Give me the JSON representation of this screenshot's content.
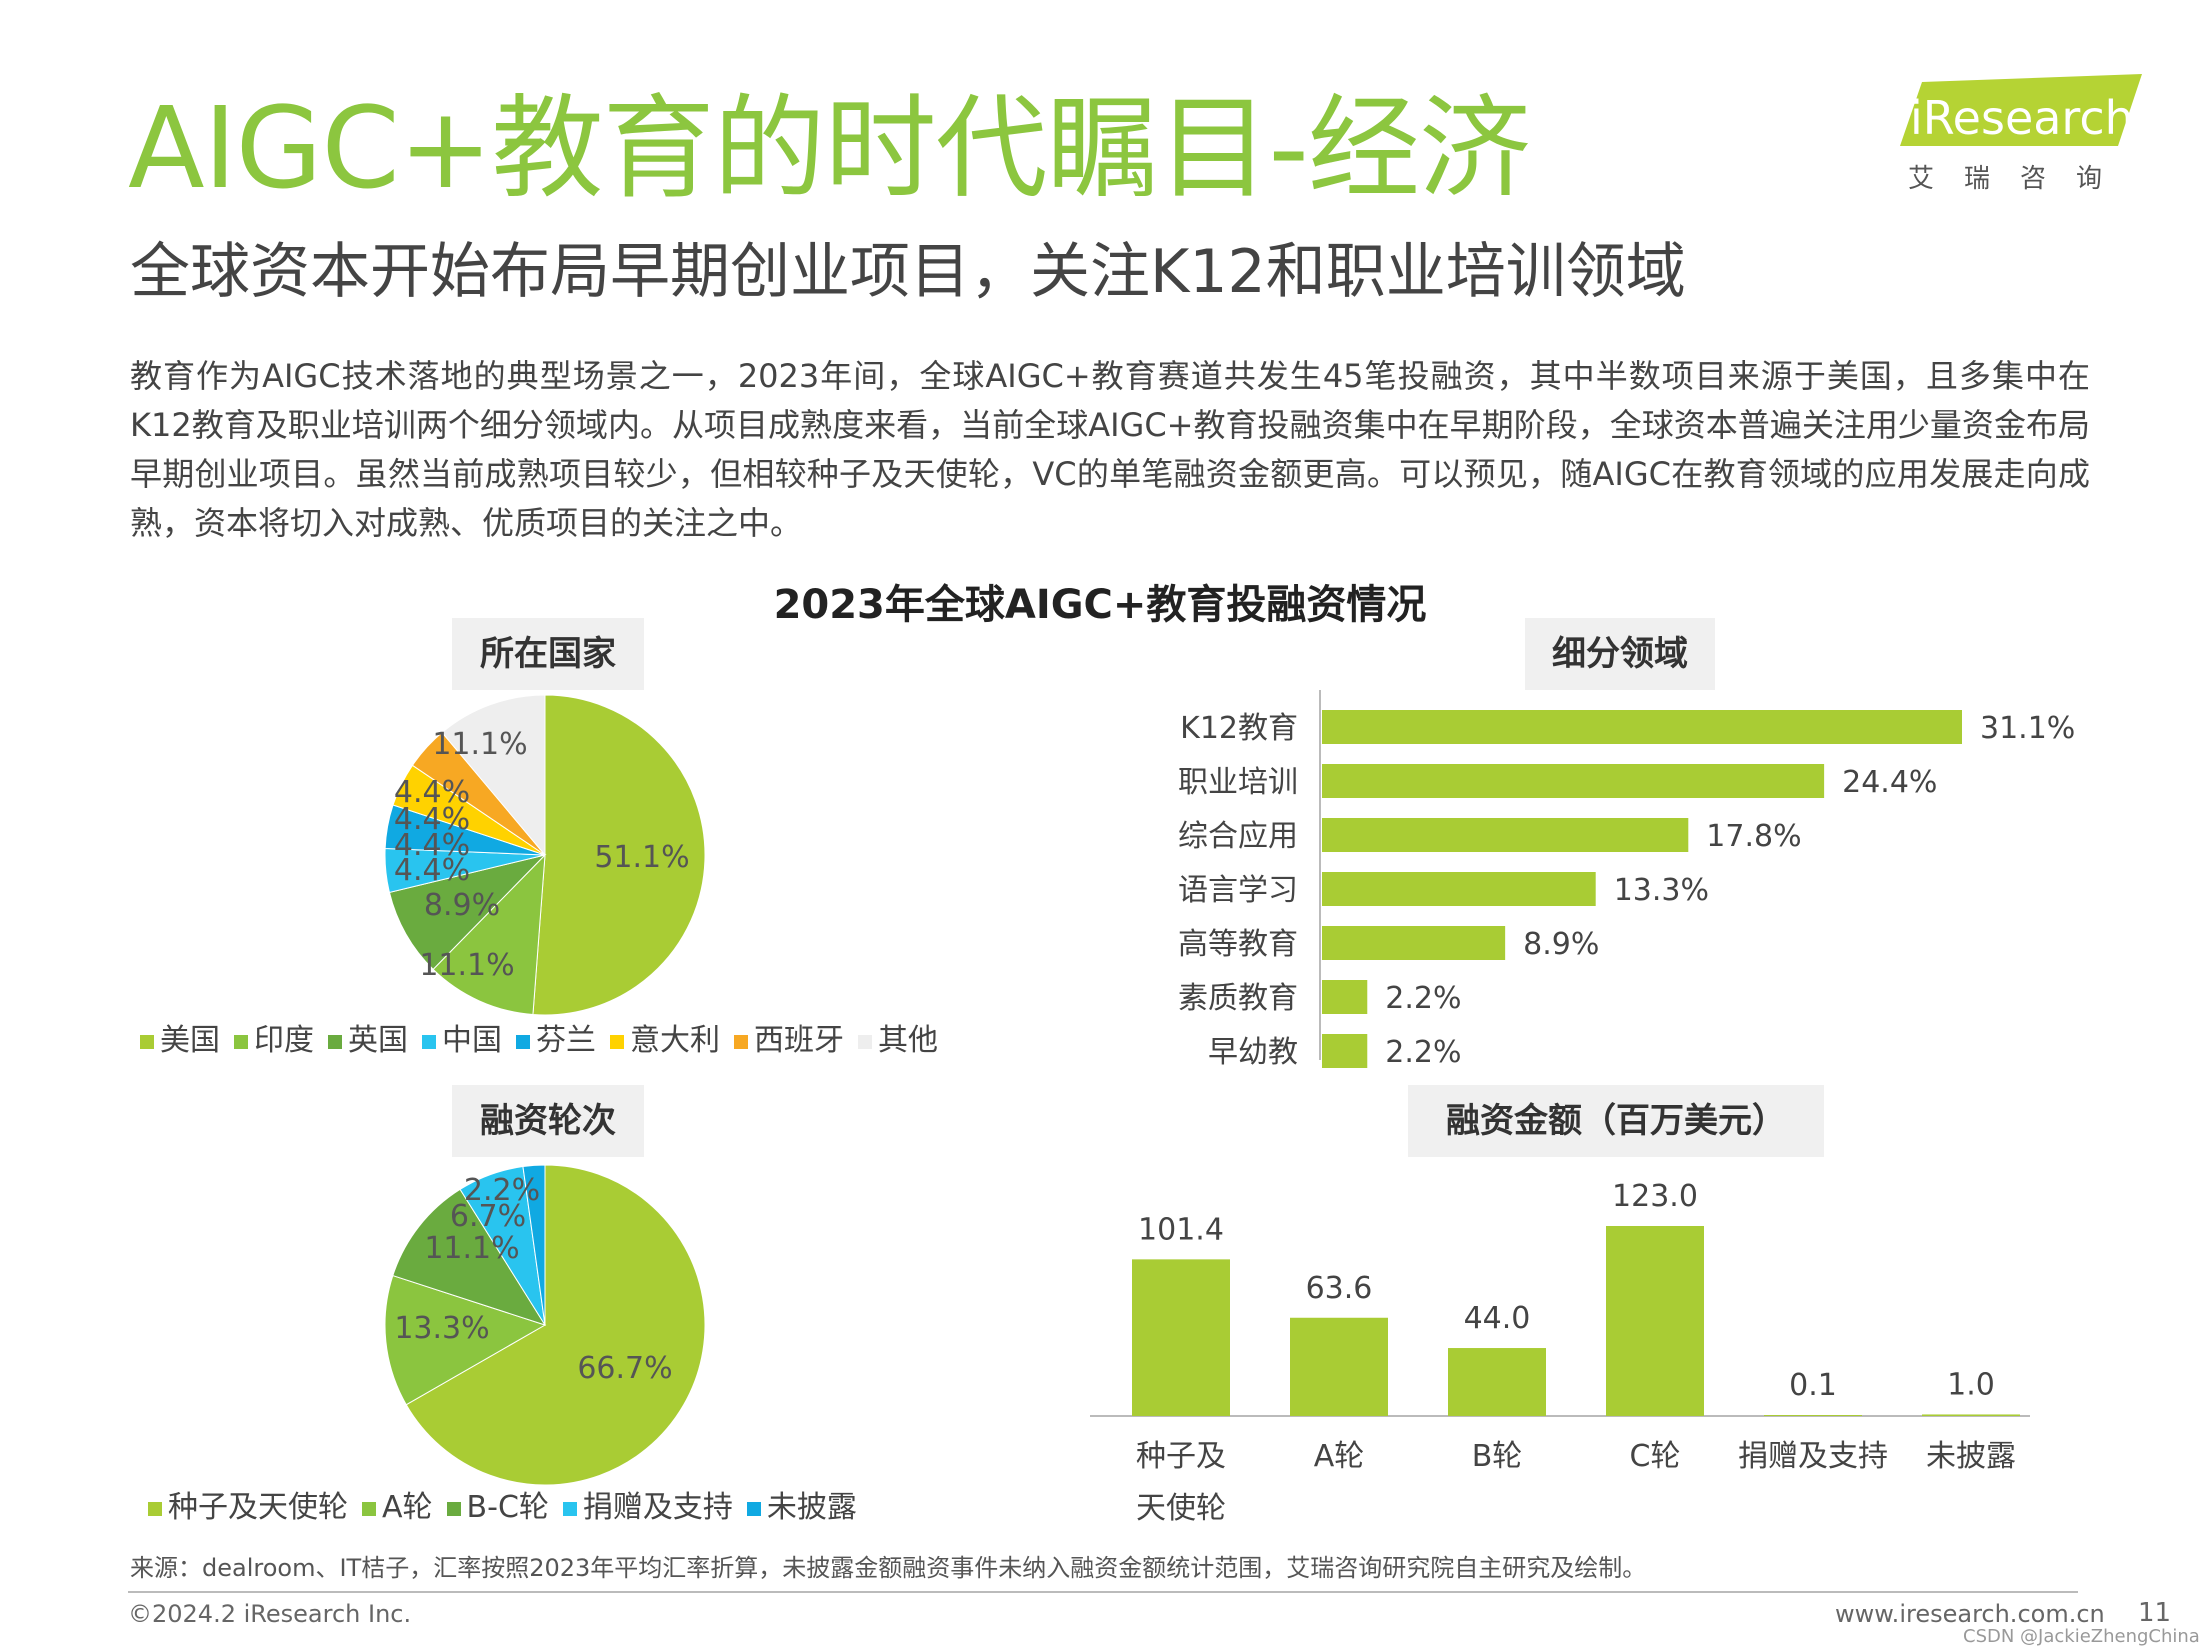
{
  "page": {
    "title": "AIGC+教育的时代瞩目-经济",
    "subtitle": "全球资本开始布局早期创业项目，关注K12和职业培训领域",
    "logo_text": "iResearch",
    "logo_cn": "艾瑞咨询",
    "body": "教育作为AIGC技术落地的典型场景之一，2023年间，全球AIGC+教育赛道共发生45笔投融资，其中半数项目来源于美国，且多集中在K12教育及职业培训两个细分领域内。从项目成熟度来看，当前全球AIGC+教育投融资集中在早期阶段，全球资本普遍关注用少量资金布局早期创业项目。虽然当前成熟项目较少，但相较种子及天使轮，VC的单笔融资金额更高。可以预见，随AIGC在教育领域的应用发展走向成熟，资本将切入对成熟、优质项目的关注之中。",
    "chart_title": "2023年全球AIGC+教育投融资情况",
    "source": "来源：dealroom、IT桔子，汇率按照2023年平均汇率折算，未披露金额融资事件未纳入融资金额统计范围，艾瑞咨询研究院自主研究及绘制。",
    "copyright": "©2024.2 iResearch Inc.",
    "website": "www.iresearch.com.cn",
    "page_number": "11",
    "watermark": "CSDN @JackieZhengChina"
  },
  "colors": {
    "title_green": "#8cc63f",
    "bar_green": "#a9cc34",
    "pie": [
      "#a9cc34",
      "#8bc53f",
      "#6aab3f",
      "#29c4ef",
      "#10a9e2",
      "#ffd200",
      "#f7a823",
      "#eeeeee"
    ]
  },
  "chart_data": [
    {
      "type": "pie",
      "label": "所在国家",
      "categories": [
        "美国",
        "印度",
        "英国",
        "中国",
        "芬兰",
        "意大利",
        "西班牙",
        "其他"
      ],
      "values": [
        51.1,
        11.1,
        8.9,
        4.4,
        4.4,
        4.4,
        4.4,
        11.1
      ],
      "value_labels": [
        "51.1%",
        "11.1%",
        "8.9%",
        "4.4%",
        "4.4%",
        "4.4%",
        "4.4%",
        "11.1%"
      ],
      "legend_position": "bottom"
    },
    {
      "type": "bar",
      "orientation": "horizontal",
      "label": "细分领域",
      "categories": [
        "K12教育",
        "职业培训",
        "综合应用",
        "语言学习",
        "高等教育",
        "素质教育",
        "早幼教"
      ],
      "values": [
        31.1,
        24.4,
        17.8,
        13.3,
        8.9,
        2.2,
        2.2
      ],
      "value_labels": [
        "31.1%",
        "24.4%",
        "17.8%",
        "13.3%",
        "8.9%",
        "2.2%",
        "2.2%"
      ]
    },
    {
      "type": "pie",
      "label": "融资轮次",
      "categories": [
        "种子及天使轮",
        "A轮",
        "B-C轮",
        "捐赠及支持",
        "未披露"
      ],
      "values": [
        66.7,
        13.3,
        11.1,
        6.7,
        2.2
      ],
      "value_labels": [
        "66.7%",
        "13.3%",
        "11.1%",
        "6.7%",
        "2.2%"
      ],
      "legend_position": "bottom"
    },
    {
      "type": "bar",
      "orientation": "vertical",
      "label": "融资金额（百万美元）",
      "categories": [
        "种子及天使轮",
        "A轮",
        "B轮",
        "C轮",
        "捐赠及支持",
        "未披露"
      ],
      "category_lines": [
        [
          "种子及",
          "天使轮"
        ],
        [
          "A轮"
        ],
        [
          "B轮"
        ],
        [
          "C轮"
        ],
        [
          "捐赠及支持"
        ],
        [
          "未披露"
        ]
      ],
      "values": [
        101.4,
        63.6,
        44.0,
        123.0,
        0.1,
        1.0
      ],
      "value_labels": [
        "101.4",
        "63.6",
        "44.0",
        "123.0",
        "0.1",
        "1.0"
      ]
    }
  ]
}
